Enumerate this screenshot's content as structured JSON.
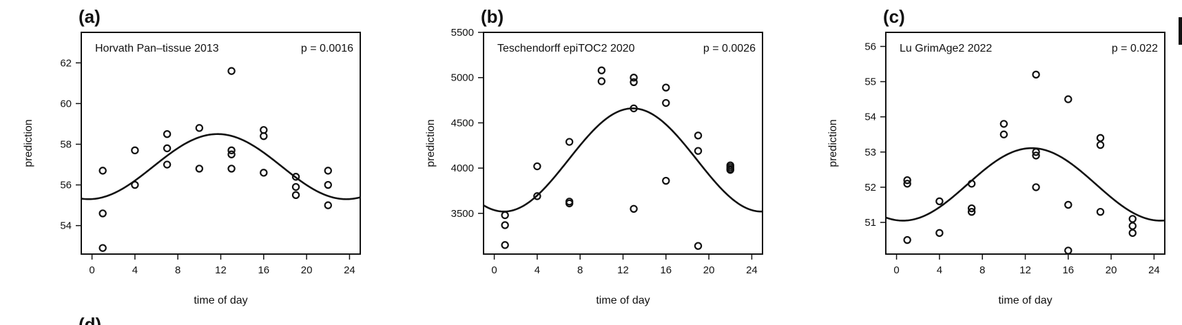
{
  "chart_data": [
    {
      "type": "scatter",
      "panel_label": "(a)",
      "title": "Horvath Pan–tissue 2013",
      "p_value": "p = 0.0016",
      "xlabel": "time of day",
      "ylabel": "prediction",
      "xlim": [
        -1,
        25
      ],
      "ylim": [
        52.6,
        63.5
      ],
      "xticks": [
        0,
        4,
        8,
        12,
        16,
        20,
        24
      ],
      "yticks": [
        54,
        56,
        58,
        60,
        62
      ],
      "points": [
        [
          1,
          56.7
        ],
        [
          1,
          54.6
        ],
        [
          1,
          52.9
        ],
        [
          4,
          57.7
        ],
        [
          4,
          56.0
        ],
        [
          7,
          58.5
        ],
        [
          7,
          57.8
        ],
        [
          7,
          57.0
        ],
        [
          10,
          58.8
        ],
        [
          10,
          56.8
        ],
        [
          13,
          61.6
        ],
        [
          13,
          57.7
        ],
        [
          13,
          57.5
        ],
        [
          13,
          56.8
        ],
        [
          16,
          58.7
        ],
        [
          16,
          58.4
        ],
        [
          16,
          56.6
        ],
        [
          19,
          56.4
        ],
        [
          19,
          55.9
        ],
        [
          19,
          55.5
        ],
        [
          22,
          56.7
        ],
        [
          22,
          56.0
        ],
        [
          22,
          55.0
        ]
      ],
      "fit": {
        "mean": 56.9,
        "amplitude": 1.6,
        "peak": 11.7,
        "period": 24
      }
    },
    {
      "type": "scatter",
      "panel_label": "(b)",
      "title": "Teschendorff epiTOC2 2020",
      "p_value": "p = 0.0026",
      "xlabel": "time of day",
      "ylabel": "prediction",
      "xlim": [
        -1,
        25
      ],
      "ylim": [
        3050,
        5500
      ],
      "xticks": [
        0,
        4,
        8,
        12,
        16,
        20,
        24
      ],
      "yticks": [
        3500,
        4000,
        4500,
        5000,
        5500
      ],
      "points": [
        [
          1,
          3480
        ],
        [
          1,
          3370
        ],
        [
          1,
          3150
        ],
        [
          4,
          4020
        ],
        [
          4,
          3690
        ],
        [
          7,
          4290
        ],
        [
          7,
          3630
        ],
        [
          7,
          3610
        ],
        [
          10,
          5080
        ],
        [
          10,
          4960
        ],
        [
          13,
          5000
        ],
        [
          13,
          4950
        ],
        [
          13,
          4660
        ],
        [
          13,
          3550
        ],
        [
          16,
          4890
        ],
        [
          16,
          4720
        ],
        [
          16,
          3860
        ],
        [
          19,
          4360
        ],
        [
          19,
          4190
        ],
        [
          19,
          3140
        ],
        [
          22,
          4030
        ],
        [
          22,
          4010
        ],
        [
          22,
          3990
        ],
        [
          22,
          3980
        ]
      ],
      "fit": {
        "mean": 4090,
        "amplitude": 570,
        "peak": 12.9,
        "period": 24
      }
    },
    {
      "type": "scatter",
      "panel_label": "(c)",
      "title": "Lu GrimAge2 2022",
      "p_value": "p = 0.022",
      "xlabel": "time of day",
      "ylabel": "prediction",
      "xlim": [
        -1,
        25
      ],
      "ylim": [
        50.1,
        56.4
      ],
      "xticks": [
        0,
        4,
        8,
        12,
        16,
        20,
        24
      ],
      "yticks": [
        51,
        52,
        53,
        54,
        55,
        56
      ],
      "points": [
        [
          1,
          52.2
        ],
        [
          1,
          52.1
        ],
        [
          1,
          50.5
        ],
        [
          4,
          51.6
        ],
        [
          4,
          50.7
        ],
        [
          7,
          52.1
        ],
        [
          7,
          51.4
        ],
        [
          7,
          51.3
        ],
        [
          10,
          53.8
        ],
        [
          10,
          53.5
        ],
        [
          13,
          55.2
        ],
        [
          13,
          53.0
        ],
        [
          13,
          52.9
        ],
        [
          13,
          52.0
        ],
        [
          16,
          54.5
        ],
        [
          16,
          51.5
        ],
        [
          16,
          50.2
        ],
        [
          19,
          53.4
        ],
        [
          19,
          53.2
        ],
        [
          19,
          51.3
        ],
        [
          22,
          51.1
        ],
        [
          22,
          50.9
        ],
        [
          22,
          50.7
        ]
      ],
      "fit": {
        "mean": 52.08,
        "amplitude": 1.03,
        "peak": 12.6,
        "period": 24
      }
    }
  ],
  "bottom_partial_labels": [
    {
      "text": "(d)"
    }
  ]
}
